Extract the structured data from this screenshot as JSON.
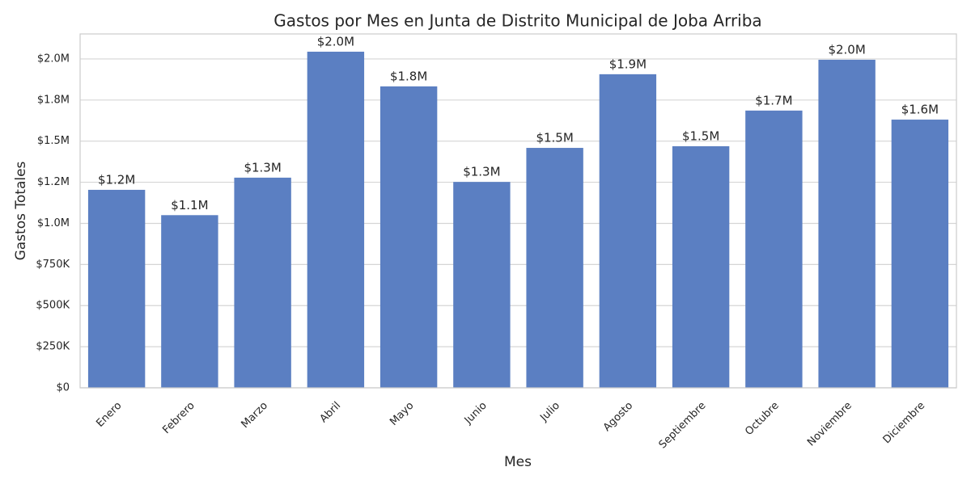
{
  "chart_data": {
    "type": "bar",
    "title": "Gastos por Mes en Junta de Distrito Municipal de Joba Arriba",
    "x_label": "Mes",
    "y_label": "Gastos Totales",
    "categories": [
      "Enero",
      "Febrero",
      "Marzo",
      "Abril",
      "Mayo",
      "Junio",
      "Julio",
      "Agosto",
      "Septiembre",
      "Octubre",
      "Noviembre",
      "Diciembre"
    ],
    "values": [
      1204000,
      1050000,
      1278000,
      2044000,
      1833000,
      1252000,
      1459000,
      1907000,
      1469000,
      1686000,
      1995000,
      1631000
    ],
    "value_labels": [
      "$1.2M",
      "$1.1M",
      "$1.3M",
      "$2.0M",
      "$1.8M",
      "$1.3M",
      "$1.5M",
      "$1.9M",
      "$1.5M",
      "$1.7M",
      "$2.0M",
      "$1.6M"
    ],
    "color": "#5b7fc2",
    "ylim": [
      0,
      2152000
    ],
    "yticks": [
      {
        "value": 0,
        "label": "$0"
      },
      {
        "value": 250000,
        "label": "$250K"
      },
      {
        "value": 500000,
        "label": "$500K"
      },
      {
        "value": 750000,
        "label": "$750K"
      },
      {
        "value": 1000000,
        "label": "$1.0M"
      },
      {
        "value": 1250000,
        "label": "$1.2M"
      },
      {
        "value": 1500000,
        "label": "$1.5M"
      },
      {
        "value": 1750000,
        "label": "$1.8M"
      },
      {
        "value": 2000000,
        "label": "$2.0M"
      }
    ],
    "grid": true
  }
}
